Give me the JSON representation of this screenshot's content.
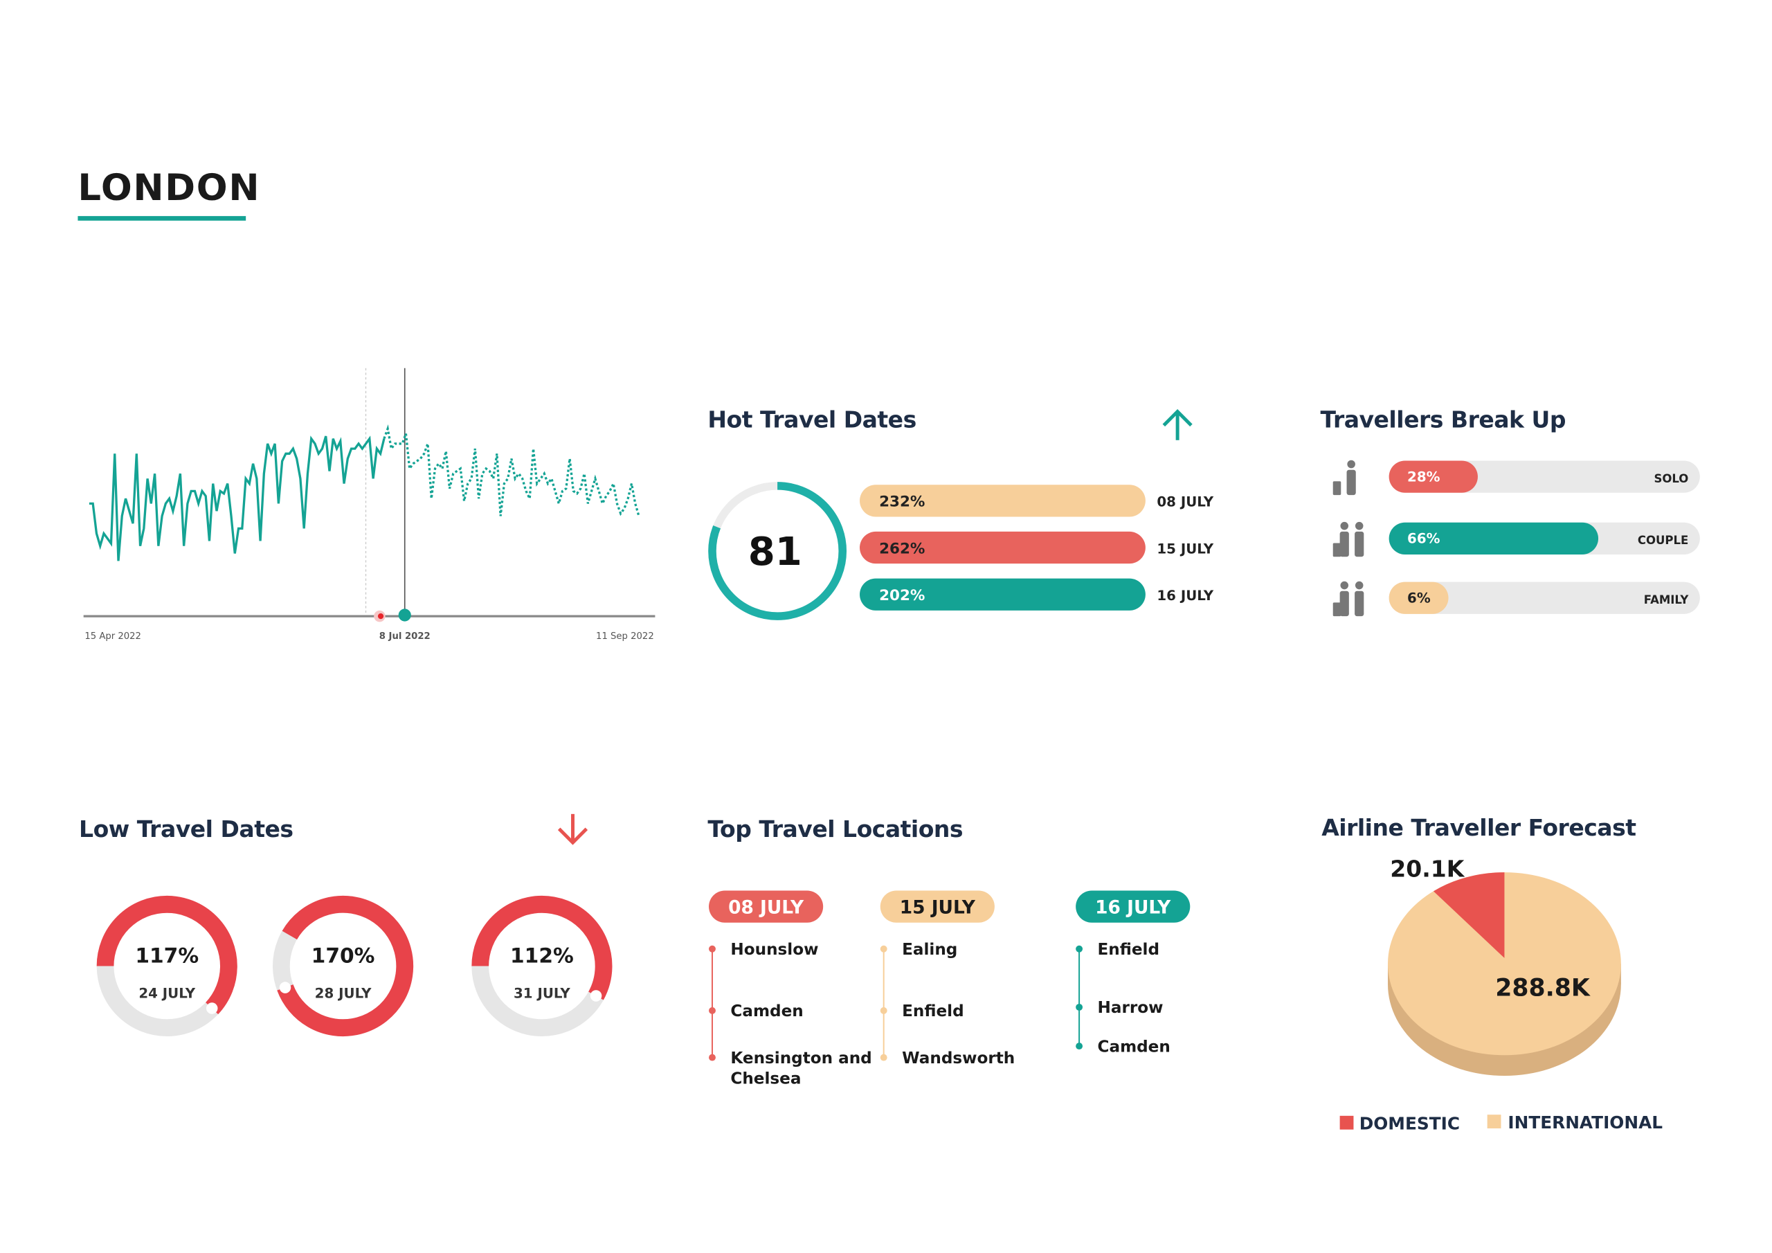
{
  "page": {
    "title": "LONDON"
  },
  "colors": {
    "teal": "#14a394",
    "red": "#e8534f",
    "peach": "#f7cf9a",
    "peach_dark": "#d9b07f",
    "navy": "#1e2d45",
    "grey": "#e8e8e8"
  },
  "trend_chart": {
    "x_tick_labels": [
      "15 Apr 2022",
      "8 Jul 2022",
      "11 Sep 2022"
    ],
    "actual": [
      50,
      50,
      38,
      33,
      38,
      36,
      34,
      70,
      27,
      45,
      52,
      47,
      42,
      70,
      33,
      40,
      60,
      50,
      62,
      33,
      45,
      50,
      52,
      47,
      53,
      62,
      33,
      50,
      55,
      55,
      50,
      55,
      53,
      35,
      58,
      47,
      55,
      54,
      58,
      45,
      30,
      40,
      40,
      60,
      58,
      66,
      60,
      35,
      62,
      74,
      70,
      74,
      50,
      67,
      70,
      70,
      72,
      68,
      60,
      40,
      62,
      76,
      74,
      70,
      72,
      77,
      63,
      76,
      72,
      75,
      58,
      68,
      72,
      72,
      74,
      72,
      74,
      76,
      60,
      72,
      70,
      76
    ],
    "forecast": [
      76,
      80,
      72,
      74,
      74,
      74,
      78,
      64,
      66,
      67,
      68,
      70,
      74,
      52,
      64,
      66,
      64,
      71,
      56,
      62,
      63,
      64,
      51,
      58,
      60,
      72,
      52,
      62,
      64,
      63,
      60,
      70,
      45,
      58,
      60,
      68,
      60,
      62,
      60,
      55,
      52,
      72,
      58,
      60,
      62,
      58,
      60,
      55,
      50,
      55,
      56,
      68,
      55,
      54,
      56,
      62,
      50,
      55,
      60,
      55,
      50,
      53,
      55,
      58,
      50,
      46,
      48,
      52,
      58,
      50,
      45
    ],
    "line_style": {
      "actual": "solid",
      "forecast": "dotted"
    }
  },
  "hot_travel": {
    "heading": "Hot Travel Dates",
    "trend_icon": "arrow-up-icon",
    "score": "81",
    "score_fraction": 0.81,
    "bars": [
      {
        "value": "232%",
        "date": "08 JULY",
        "color": "#f7cf9a"
      },
      {
        "value": "262%",
        "date": "15 JULY",
        "color": "#e8635d"
      },
      {
        "value": "202%",
        "date": "16 JULY",
        "color": "#14a394"
      }
    ]
  },
  "travellers": {
    "heading": "Travellers Break Up",
    "items": [
      {
        "label": "SOLO",
        "value": "28%",
        "percent": 28,
        "color": "#e8635d",
        "icon": "solo-traveller-icon"
      },
      {
        "label": "COUPLE",
        "value": "66%",
        "percent": 66,
        "color": "#14a394",
        "icon": "couple-traveller-icon"
      },
      {
        "label": "FAMILY",
        "value": "6%",
        "percent": 6,
        "color": "#f7cf9a",
        "icon": "family-traveller-icon"
      }
    ]
  },
  "low_travel": {
    "heading": "Low Travel Dates",
    "trend_icon": "arrow-down-icon",
    "items": [
      {
        "value": "117%",
        "date": "24 JULY",
        "fraction": 0.62
      },
      {
        "value": "170%",
        "date": "28 JULY",
        "fraction": 0.86
      },
      {
        "value": "112%",
        "date": "31 JULY",
        "fraction": 0.58
      }
    ]
  },
  "top_locations": {
    "heading": "Top Travel Locations",
    "columns": [
      {
        "date": "08 JULY",
        "color": "#e8635d",
        "text_color": "#ffffff",
        "places": [
          "Hounslow",
          "Camden",
          "Kensington and",
          "Chelsea"
        ]
      },
      {
        "date": "15 JULY",
        "color": "#f7cf9a",
        "text_color": "#1a1a1a",
        "places": [
          "Ealing",
          "Enfield",
          "Wandsworth"
        ]
      },
      {
        "date": "16 JULY",
        "color": "#14a394",
        "text_color": "#ffffff",
        "places": [
          "Enfield",
          "Harrow",
          "Camden"
        ]
      }
    ]
  },
  "forecast": {
    "heading": "Airline Traveller Forecast",
    "chart_data": {
      "type": "pie",
      "slices": [
        {
          "name": "DOMESTIC",
          "value": 20.1,
          "label": "20.1K",
          "color": "#e8534f"
        },
        {
          "name": "INTERNATIONAL",
          "value": 288.8,
          "label": "288.8K",
          "color": "#f7cf9a"
        }
      ],
      "legend_placement": "bottom"
    }
  }
}
